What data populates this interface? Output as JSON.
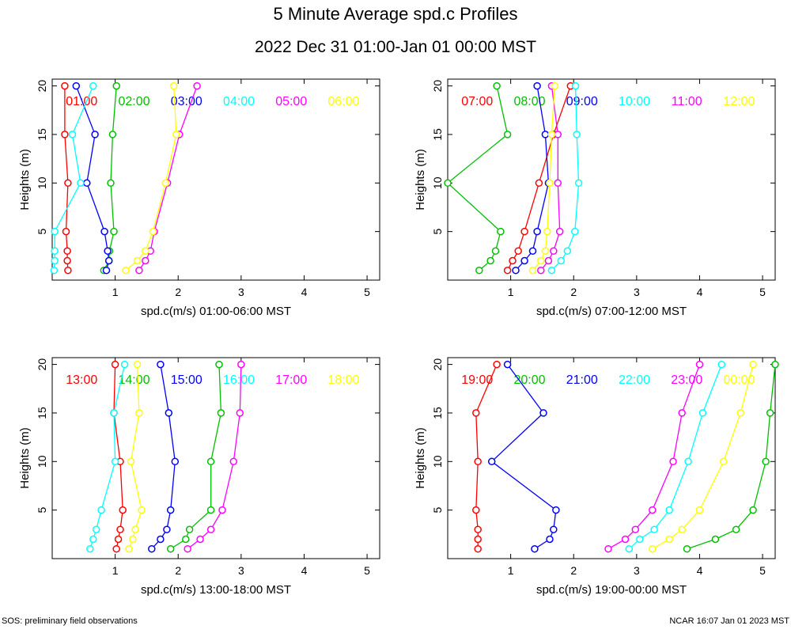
{
  "title": "5 Minute Average spd.c Profiles",
  "subtitle": "2022 Dec 31 01:00-Jan 01 00:00 MST",
  "footer": {
    "left": "SOS: preliminary field observations",
    "right": "NCAR 16:07 Jan 01 2023 MST"
  },
  "colors": [
    "#ff0000",
    "#00c000",
    "#0000ff",
    "#00ffff",
    "#ff00ff",
    "#ffff00"
  ],
  "chart_data": [
    {
      "type": "line",
      "title": "",
      "xlabel": "spd.c(m/s) 01:00-06:00 MST",
      "ylabel": "Heights (m)",
      "xlim": [
        0,
        5.2
      ],
      "ylim": [
        0,
        20.7
      ],
      "xticks": [
        1,
        2,
        3,
        4,
        5
      ],
      "yticks": [
        5,
        10,
        15,
        20
      ],
      "heights": [
        1,
        2,
        3,
        5,
        10,
        15,
        20
      ],
      "series": [
        {
          "name": "01:00",
          "values": [
            0.25,
            0.24,
            0.24,
            0.22,
            0.25,
            0.2,
            0.2
          ]
        },
        {
          "name": "02:00",
          "values": [
            0.82,
            0.9,
            0.91,
            0.98,
            0.93,
            0.96,
            1.02
          ]
        },
        {
          "name": "03:00",
          "values": [
            0.86,
            0.9,
            0.88,
            0.83,
            0.55,
            0.68,
            0.38
          ]
        },
        {
          "name": "04:00",
          "values": [
            0.03,
            0.04,
            0.04,
            0.04,
            0.45,
            0.32,
            0.65
          ]
        },
        {
          "name": "05:00",
          "values": [
            1.38,
            1.48,
            1.56,
            1.62,
            1.83,
            2.02,
            2.3
          ]
        },
        {
          "name": "06:00",
          "values": [
            1.17,
            1.35,
            1.48,
            1.6,
            1.8,
            1.97,
            1.93
          ]
        }
      ]
    },
    {
      "type": "line",
      "title": "",
      "xlabel": "spd.c(m/s) 07:00-12:00 MST",
      "ylabel": "Heights (m)",
      "xlim": [
        0,
        5.2
      ],
      "ylim": [
        0,
        20.7
      ],
      "xticks": [
        1,
        2,
        3,
        4,
        5
      ],
      "yticks": [
        5,
        10,
        15,
        20
      ],
      "heights": [
        1,
        2,
        3,
        5,
        10,
        15,
        20
      ],
      "series": [
        {
          "name": "07:00",
          "values": [
            0.95,
            1.03,
            1.12,
            1.22,
            1.45,
            1.68,
            1.95
          ]
        },
        {
          "name": "08:00",
          "values": [
            0.5,
            0.68,
            0.76,
            0.84,
            0.0,
            0.95,
            0.78
          ]
        },
        {
          "name": "09:00",
          "values": [
            1.08,
            1.22,
            1.35,
            1.42,
            1.6,
            1.55,
            1.42
          ]
        },
        {
          "name": "10:00",
          "values": [
            1.65,
            1.8,
            1.9,
            2.02,
            2.08,
            2.05,
            2.03
          ]
        },
        {
          "name": "11:00",
          "values": [
            1.48,
            1.6,
            1.68,
            1.78,
            1.75,
            1.75,
            1.65
          ]
        },
        {
          "name": "12:00",
          "values": [
            1.35,
            1.48,
            1.55,
            1.58,
            1.62,
            1.65,
            1.7
          ]
        }
      ]
    },
    {
      "type": "line",
      "title": "",
      "xlabel": "spd.c(m/s) 13:00-18:00 MST",
      "ylabel": "Heights (m)",
      "xlim": [
        0,
        5.2
      ],
      "ylim": [
        0,
        20.7
      ],
      "xticks": [
        1,
        2,
        3,
        4,
        5
      ],
      "yticks": [
        5,
        10,
        15,
        20
      ],
      "heights": [
        1,
        2,
        3,
        5,
        10,
        15,
        20
      ],
      "series": [
        {
          "name": "13:00",
          "values": [
            1.02,
            1.05,
            1.08,
            1.12,
            1.08,
            0.98,
            1.0
          ]
        },
        {
          "name": "14:00",
          "values": [
            1.88,
            2.12,
            2.18,
            2.52,
            2.52,
            2.68,
            2.65
          ]
        },
        {
          "name": "15:00",
          "values": [
            1.58,
            1.72,
            1.82,
            1.88,
            1.95,
            1.85,
            1.72
          ]
        },
        {
          "name": "16:00",
          "values": [
            0.6,
            0.65,
            0.7,
            0.78,
            1.0,
            0.98,
            1.15
          ]
        },
        {
          "name": "17:00",
          "values": [
            2.15,
            2.35,
            2.52,
            2.7,
            2.88,
            2.98,
            3.0
          ]
        },
        {
          "name": "18:00",
          "values": [
            1.22,
            1.28,
            1.32,
            1.42,
            1.25,
            1.38,
            1.35
          ]
        }
      ]
    },
    {
      "type": "line",
      "title": "",
      "xlabel": "spd.c(m/s) 19:00-00:00 MST",
      "ylabel": "Heights (m)",
      "xlim": [
        0,
        5.2
      ],
      "ylim": [
        0,
        20.7
      ],
      "xticks": [
        1,
        2,
        3,
        4,
        5
      ],
      "yticks": [
        5,
        10,
        15,
        20
      ],
      "heights": [
        1,
        2,
        3,
        5,
        10,
        15,
        20
      ],
      "series": [
        {
          "name": "19:00",
          "values": [
            0.48,
            0.48,
            0.48,
            0.45,
            0.48,
            0.45,
            0.78
          ]
        },
        {
          "name": "20:00",
          "values": [
            3.8,
            4.25,
            4.58,
            4.85,
            5.05,
            5.12,
            5.2
          ]
        },
        {
          "name": "21:00",
          "values": [
            1.38,
            1.62,
            1.68,
            1.72,
            0.7,
            1.52,
            0.95
          ]
        },
        {
          "name": "22:00",
          "values": [
            2.88,
            3.05,
            3.28,
            3.52,
            3.82,
            4.05,
            4.35
          ]
        },
        {
          "name": "23:00",
          "values": [
            2.55,
            2.82,
            2.98,
            3.25,
            3.58,
            3.72,
            4.0
          ]
        },
        {
          "name": "00:00",
          "values": [
            3.25,
            3.52,
            3.72,
            4.0,
            4.38,
            4.65,
            4.85
          ]
        }
      ]
    }
  ]
}
